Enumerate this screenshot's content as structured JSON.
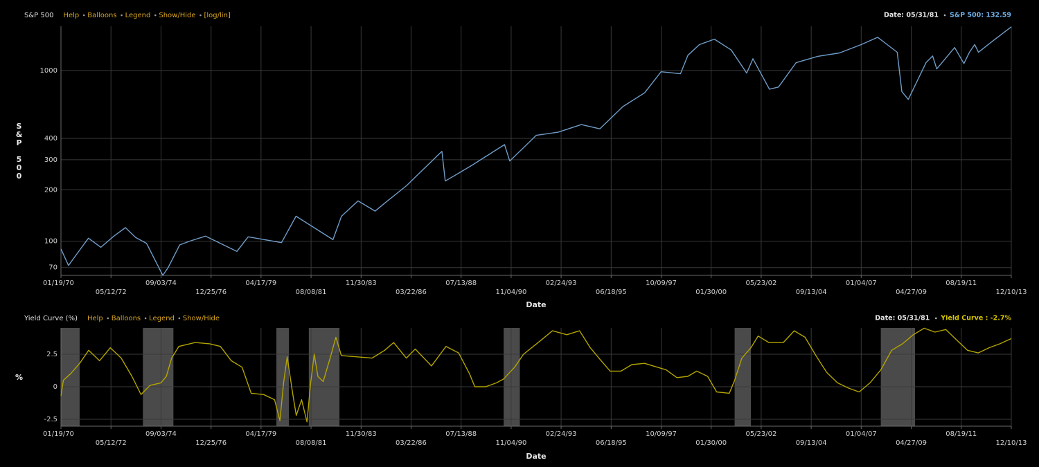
{
  "chart_data": [
    {
      "type": "line",
      "title": "S&P 500",
      "links": [
        "Help",
        "Balloons",
        "Legend",
        "Show/Hide",
        "[log/lin]"
      ],
      "status": {
        "date": "Date: 05/31/81",
        "value": "S&P 500: 132.59"
      },
      "y_label": "S&P 500",
      "x_label": "Date",
      "yscale": "log",
      "grid": true,
      "color": "#6f9cc8",
      "status_color": "#6fb0e8",
      "xlim": [
        "01/19/70",
        "12/10/13"
      ],
      "xticks": [
        "01/19/70",
        "05/12/72",
        "09/03/74",
        "12/25/76",
        "04/17/79",
        "08/08/81",
        "11/30/83",
        "03/22/86",
        "07/13/88",
        "11/04/90",
        "02/24/93",
        "06/18/95",
        "10/09/97",
        "01/30/00",
        "05/23/02",
        "09/13/04",
        "01/04/07",
        "04/27/09",
        "08/19/11",
        "12/10/13"
      ],
      "ylim": [
        63,
        1816
      ],
      "yticks": [
        70,
        100,
        200,
        300,
        400,
        1000
      ],
      "x": [
        "01/19/70",
        "05/26/70",
        "01/04/71",
        "04/28/71",
        "11/23/71",
        "06/30/72",
        "01/11/73",
        "07/02/73",
        "01/02/74",
        "10/03/74",
        "01/02/75",
        "07/15/75",
        "01/02/76",
        "09/21/76",
        "03/06/78",
        "09/12/78",
        "03/27/80",
        "11/28/80",
        "08/12/82",
        "01/03/83",
        "10/10/83",
        "07/24/84",
        "01/02/85",
        "01/02/86",
        "08/25/87",
        "10/19/87",
        "01/03/89",
        "07/16/90",
        "10/11/90",
        "01/02/92",
        "01/04/93",
        "01/31/94",
        "12/08/94",
        "01/02/96",
        "01/02/97",
        "10/07/97",
        "08/31/98",
        "01/04/99",
        "07/16/99",
        "03/24/00",
        "01/02/01",
        "09/21/01",
        "01/04/02",
        "10/09/02",
        "03/11/03",
        "01/02/04",
        "01/03/05",
        "01/03/06",
        "01/03/07",
        "10/09/07",
        "09/02/08",
        "11/20/08",
        "03/09/09",
        "01/04/10",
        "04/23/10",
        "07/02/10",
        "04/29/11",
        "10/03/11",
        "01/03/12",
        "04/02/12",
        "06/04/12",
        "01/02/13",
        "12/10/13"
      ],
      "values": [
        90,
        72,
        92,
        104,
        92,
        107,
        120,
        105,
        97,
        63,
        70,
        95,
        100,
        107,
        87,
        106,
        98,
        140,
        102,
        140,
        172,
        150,
        167,
        211,
        336,
        225,
        277,
        368,
        295,
        417,
        435,
        482,
        455,
        615,
        740,
        983,
        957,
        1229,
        1418,
        1527,
        1320,
        966,
        1172,
        777,
        800,
        1111,
        1211,
        1268,
        1418,
        1565,
        1280,
        752,
        677,
        1115,
        1217,
        1022,
        1363,
        1099,
        1277,
        1419,
        1278,
        1462,
        1802
      ]
    },
    {
      "type": "line",
      "title": "Yield Curve (%)",
      "links": [
        "Help",
        "Balloons",
        "Legend",
        "Show/Hide"
      ],
      "status": {
        "date": "Date: 05/31/81",
        "value": "Yield Curve : -2.7%"
      },
      "y_label": "%",
      "x_label": "Date",
      "yscale": "linear",
      "grid": true,
      "color": "#b3a400",
      "status_color": "#d6c400",
      "band_color": "#4a4a4a",
      "xlim": [
        "01/19/70",
        "12/10/13"
      ],
      "xticks": [
        "01/19/70",
        "05/12/72",
        "09/03/74",
        "12/25/76",
        "04/17/79",
        "08/08/81",
        "11/30/83",
        "03/22/86",
        "07/13/88",
        "11/04/90",
        "02/24/93",
        "06/18/95",
        "10/09/97",
        "01/30/00",
        "05/23/02",
        "09/13/04",
        "01/04/07",
        "04/27/09",
        "08/19/11",
        "12/10/13"
      ],
      "ylim": [
        -3.03,
        4.52
      ],
      "yticks": [
        -2.5,
        0,
        2.5
      ],
      "recessions": [
        {
          "start": "01/19/70",
          "end": "11/30/70"
        },
        {
          "start": "11/01/73",
          "end": "03/31/75"
        },
        {
          "start": "01/01/80",
          "end": "07/31/80"
        },
        {
          "start": "07/01/81",
          "end": "11/30/82"
        },
        {
          "start": "07/01/90",
          "end": "03/31/91"
        },
        {
          "start": "03/01/01",
          "end": "11/30/01"
        },
        {
          "start": "12/01/07",
          "end": "06/30/09"
        }
      ],
      "x": [
        "01/19/70",
        "03/01/70",
        "07/01/70",
        "12/01/70",
        "05/01/71",
        "11/01/71",
        "05/01/72",
        "11/01/72",
        "05/01/73",
        "10/01/73",
        "03/01/74",
        "09/01/74",
        "12/01/74",
        "03/01/75",
        "07/01/75",
        "04/01/76",
        "12/01/76",
        "06/01/77",
        "12/01/77",
        "06/01/78",
        "11/01/78",
        "06/01/79",
        "12/01/79",
        "03/01/80",
        "05/01/80",
        "07/01/80",
        "10/01/80",
        "12/01/80",
        "03/01/81",
        "05/31/81",
        "08/01/81",
        "10/01/81",
        "12/01/81",
        "03/01/82",
        "07/01/82",
        "10/01/82",
        "01/01/83",
        "06/01/84",
        "01/01/85",
        "06/01/85",
        "01/01/86",
        "06/01/86",
        "03/01/87",
        "11/01/87",
        "06/01/88",
        "12/01/88",
        "03/01/89",
        "09/01/89",
        "03/01/90",
        "07/01/90",
        "01/01/91",
        "06/01/91",
        "03/01/92",
        "10/01/92",
        "06/01/93",
        "01/01/94",
        "07/01/94",
        "01/01/95",
        "06/01/95",
        "12/01/95",
        "06/01/96",
        "01/01/97",
        "01/01/98",
        "07/01/98",
        "01/01/99",
        "06/01/99",
        "12/01/99",
        "05/01/00",
        "12/01/00",
        "03/01/01",
        "07/01/01",
        "12/01/01",
        "04/01/02",
        "10/01/02",
        "06/01/03",
        "12/01/03",
        "06/01/04",
        "12/01/04",
        "06/01/05",
        "12/01/05",
        "06/01/06",
        "12/01/06",
        "06/01/07",
        "12/01/07",
        "06/01/08",
        "12/01/08",
        "06/01/09",
        "12/01/09",
        "06/01/10",
        "12/01/10",
        "06/01/11",
        "12/01/11",
        "06/01/12",
        "12/01/12",
        "06/01/13",
        "12/10/13"
      ],
      "values": [
        -0.7,
        0.5,
        1.0,
        1.8,
        2.8,
        2.0,
        3.0,
        2.2,
        0.8,
        -0.6,
        0.1,
        0.3,
        0.8,
        2.2,
        3.1,
        3.4,
        3.3,
        3.1,
        2.0,
        1.5,
        -0.5,
        -0.6,
        -1.0,
        -2.6,
        0.3,
        2.3,
        -0.5,
        -2.2,
        -1.0,
        -2.7,
        0.3,
        2.5,
        0.8,
        0.4,
        2.3,
        3.8,
        2.4,
        2.2,
        2.8,
        3.4,
        2.2,
        2.9,
        1.6,
        3.1,
        2.6,
        1.0,
        0.0,
        0.0,
        0.3,
        0.6,
        1.5,
        2.5,
        3.5,
        4.3,
        4.0,
        4.3,
        3.0,
        2.0,
        1.2,
        1.2,
        1.7,
        1.8,
        1.3,
        0.7,
        0.8,
        1.2,
        0.8,
        -0.4,
        -0.5,
        0.5,
        2.2,
        3.0,
        3.9,
        3.4,
        3.4,
        4.3,
        3.8,
        2.4,
        1.1,
        0.3,
        -0.1,
        -0.4,
        0.3,
        1.3,
        2.8,
        3.3,
        4.0,
        4.5,
        4.2,
        4.4,
        3.6,
        2.8,
        2.6,
        3.0,
        3.3,
        3.7
      ]
    }
  ]
}
